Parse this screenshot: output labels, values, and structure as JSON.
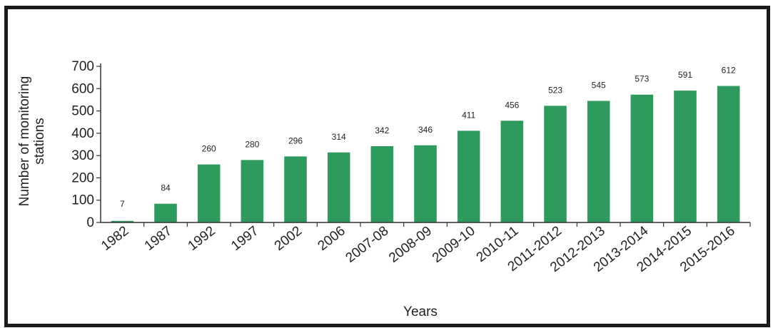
{
  "chart_data": {
    "type": "bar",
    "categories": [
      "1982",
      "1987",
      "1992",
      "1997",
      "2002",
      "2006",
      "2007-08",
      "2008-09",
      "2009-10",
      "2010-11",
      "2011-2012",
      "2012-2013",
      "2013-2014",
      "2014-2015",
      "2015-2016"
    ],
    "values": [
      7,
      84,
      260,
      280,
      296,
      314,
      342,
      346,
      411,
      456,
      523,
      545,
      573,
      591,
      612
    ],
    "data_labels": [
      "7",
      "84",
      "260",
      "280",
      "296",
      "314",
      "342",
      "346",
      "411",
      "456",
      "523",
      "545",
      "573",
      "591",
      "612"
    ],
    "title": "",
    "xlabel": "Years",
    "ylabel_lines": [
      "Number of monitoring",
      "stations"
    ],
    "ylim": [
      0,
      700
    ],
    "yticks": [
      0,
      100,
      200,
      300,
      400,
      500,
      600,
      700
    ],
    "ytick_labels": [
      "0",
      "100",
      "200",
      "300",
      "400",
      "500",
      "600",
      "700"
    ],
    "grid": false,
    "legend": "none",
    "bar_color": "#2e9a5e",
    "axis_color": "#333333"
  }
}
